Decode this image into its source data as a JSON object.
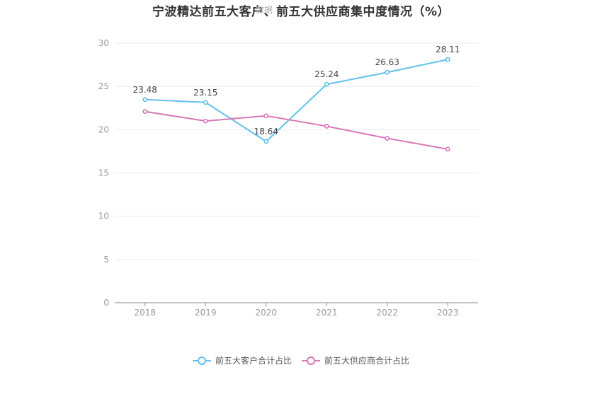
{
  "watermark": "数据",
  "chart_data": {
    "type": "line",
    "title": "宁波精达前五大客户、前五大供应商集中度情况（%）",
    "categories": [
      "2018",
      "2019",
      "2020",
      "2021",
      "2022",
      "2023"
    ],
    "ylim": [
      0,
      30
    ],
    "yticks": [
      "0",
      "5",
      "10",
      "15",
      "20",
      "25",
      "30"
    ],
    "grid": true,
    "legend_position": "bottom",
    "series": [
      {
        "name": "前五大客户合计占比",
        "color": "#63c1ec",
        "values": [
          23.48,
          23.15,
          18.64,
          25.24,
          26.63,
          28.11
        ],
        "labels": [
          "23.48",
          "23.15",
          "18.64",
          "25.24",
          "26.63",
          "28.11"
        ]
      },
      {
        "name": "前五大供应商合计占比",
        "color": "#d977b7",
        "values": [
          22.1,
          21.0,
          21.6,
          20.4,
          19.0,
          17.75
        ]
      }
    ]
  }
}
